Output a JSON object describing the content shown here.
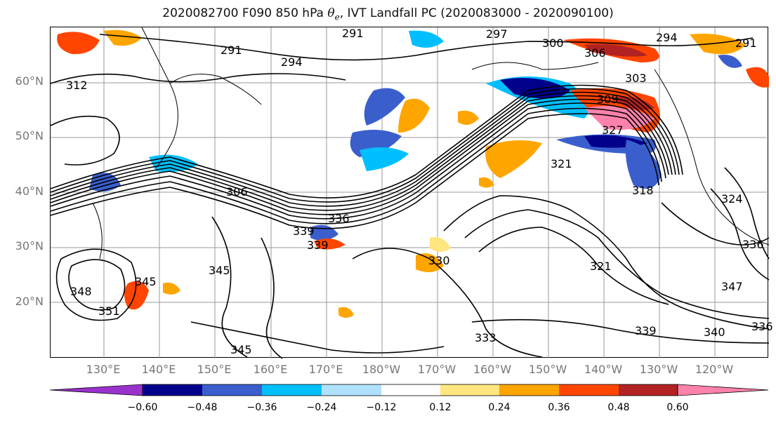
{
  "title": {
    "prefix": "2020082700 F090 850 hPa ",
    "theta": "θ",
    "theta_sub": "e",
    "suffix": ", IVT Landfall PC (2020083000 - 2020090100)"
  },
  "lat_labels": [
    "60°N",
    "50°N",
    "40°N",
    "30°N",
    "20°N"
  ],
  "lon_labels": [
    "130°E",
    "140°E",
    "150°E",
    "160°E",
    "170°E",
    "180°W",
    "170°W",
    "160°W",
    "150°W",
    "140°W",
    "130°W",
    "120°W"
  ],
  "contour_labels": [
    "291",
    "291",
    "294",
    "297",
    "300",
    "306",
    "294",
    "291",
    "303",
    "309",
    "312",
    "327",
    "321",
    "318",
    "306",
    "336",
    "339",
    "339",
    "330",
    "345",
    "348",
    "351",
    "345",
    "333",
    "345",
    "339",
    "321",
    "324",
    "336",
    "340",
    "347",
    "336"
  ],
  "colorbar": {
    "colors": [
      "#9932cc",
      "#00008b",
      "#3a5fcd",
      "#00bfff",
      "#b0e2ff",
      "#ffffff",
      "#ffe680",
      "#ffa500",
      "#ff4500",
      "#b22222",
      "#ff82ab"
    ],
    "ticks": [
      "−0.60",
      "−0.48",
      "−0.36",
      "−0.24",
      "−0.12",
      "0.12",
      "0.24",
      "0.36",
      "0.48",
      "0.60"
    ]
  }
}
